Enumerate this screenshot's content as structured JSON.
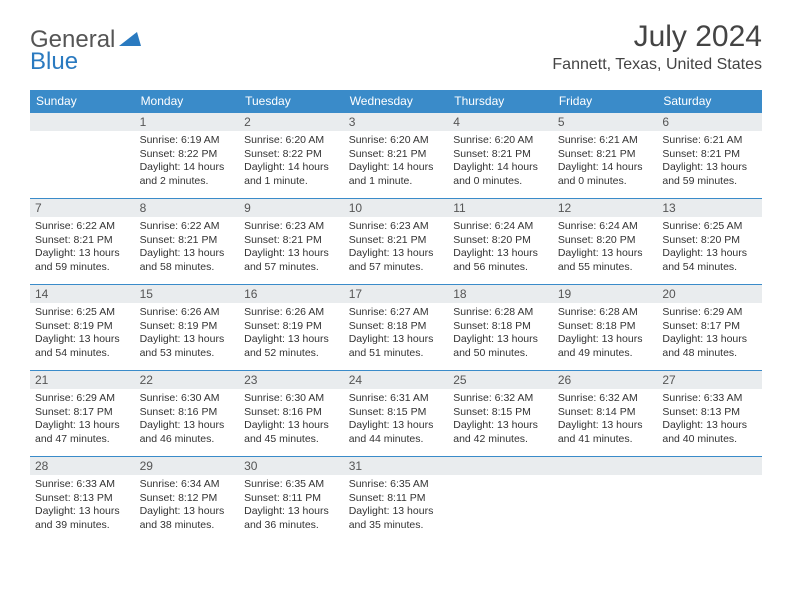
{
  "brand": {
    "part1": "General",
    "part2": "Blue"
  },
  "title": "July 2024",
  "location": "Fannett, Texas, United States",
  "colors": {
    "header_bg": "#3a8bc9",
    "header_text": "#ffffff",
    "daynum_bg": "#e9ecee",
    "border": "#3a8bc9",
    "brand_blue": "#2a7ac0",
    "text": "#333333",
    "page_bg": "#ffffff"
  },
  "day_headers": [
    "Sunday",
    "Monday",
    "Tuesday",
    "Wednesday",
    "Thursday",
    "Friday",
    "Saturday"
  ],
  "weeks": [
    [
      {
        "n": "",
        "sunrise": "",
        "sunset": "",
        "daylight": ""
      },
      {
        "n": "1",
        "sunrise": "Sunrise: 6:19 AM",
        "sunset": "Sunset: 8:22 PM",
        "daylight": "Daylight: 14 hours and 2 minutes."
      },
      {
        "n": "2",
        "sunrise": "Sunrise: 6:20 AM",
        "sunset": "Sunset: 8:22 PM",
        "daylight": "Daylight: 14 hours and 1 minute."
      },
      {
        "n": "3",
        "sunrise": "Sunrise: 6:20 AM",
        "sunset": "Sunset: 8:21 PM",
        "daylight": "Daylight: 14 hours and 1 minute."
      },
      {
        "n": "4",
        "sunrise": "Sunrise: 6:20 AM",
        "sunset": "Sunset: 8:21 PM",
        "daylight": "Daylight: 14 hours and 0 minutes."
      },
      {
        "n": "5",
        "sunrise": "Sunrise: 6:21 AM",
        "sunset": "Sunset: 8:21 PM",
        "daylight": "Daylight: 14 hours and 0 minutes."
      },
      {
        "n": "6",
        "sunrise": "Sunrise: 6:21 AM",
        "sunset": "Sunset: 8:21 PM",
        "daylight": "Daylight: 13 hours and 59 minutes."
      }
    ],
    [
      {
        "n": "7",
        "sunrise": "Sunrise: 6:22 AM",
        "sunset": "Sunset: 8:21 PM",
        "daylight": "Daylight: 13 hours and 59 minutes."
      },
      {
        "n": "8",
        "sunrise": "Sunrise: 6:22 AM",
        "sunset": "Sunset: 8:21 PM",
        "daylight": "Daylight: 13 hours and 58 minutes."
      },
      {
        "n": "9",
        "sunrise": "Sunrise: 6:23 AM",
        "sunset": "Sunset: 8:21 PM",
        "daylight": "Daylight: 13 hours and 57 minutes."
      },
      {
        "n": "10",
        "sunrise": "Sunrise: 6:23 AM",
        "sunset": "Sunset: 8:21 PM",
        "daylight": "Daylight: 13 hours and 57 minutes."
      },
      {
        "n": "11",
        "sunrise": "Sunrise: 6:24 AM",
        "sunset": "Sunset: 8:20 PM",
        "daylight": "Daylight: 13 hours and 56 minutes."
      },
      {
        "n": "12",
        "sunrise": "Sunrise: 6:24 AM",
        "sunset": "Sunset: 8:20 PM",
        "daylight": "Daylight: 13 hours and 55 minutes."
      },
      {
        "n": "13",
        "sunrise": "Sunrise: 6:25 AM",
        "sunset": "Sunset: 8:20 PM",
        "daylight": "Daylight: 13 hours and 54 minutes."
      }
    ],
    [
      {
        "n": "14",
        "sunrise": "Sunrise: 6:25 AM",
        "sunset": "Sunset: 8:19 PM",
        "daylight": "Daylight: 13 hours and 54 minutes."
      },
      {
        "n": "15",
        "sunrise": "Sunrise: 6:26 AM",
        "sunset": "Sunset: 8:19 PM",
        "daylight": "Daylight: 13 hours and 53 minutes."
      },
      {
        "n": "16",
        "sunrise": "Sunrise: 6:26 AM",
        "sunset": "Sunset: 8:19 PM",
        "daylight": "Daylight: 13 hours and 52 minutes."
      },
      {
        "n": "17",
        "sunrise": "Sunrise: 6:27 AM",
        "sunset": "Sunset: 8:18 PM",
        "daylight": "Daylight: 13 hours and 51 minutes."
      },
      {
        "n": "18",
        "sunrise": "Sunrise: 6:28 AM",
        "sunset": "Sunset: 8:18 PM",
        "daylight": "Daylight: 13 hours and 50 minutes."
      },
      {
        "n": "19",
        "sunrise": "Sunrise: 6:28 AM",
        "sunset": "Sunset: 8:18 PM",
        "daylight": "Daylight: 13 hours and 49 minutes."
      },
      {
        "n": "20",
        "sunrise": "Sunrise: 6:29 AM",
        "sunset": "Sunset: 8:17 PM",
        "daylight": "Daylight: 13 hours and 48 minutes."
      }
    ],
    [
      {
        "n": "21",
        "sunrise": "Sunrise: 6:29 AM",
        "sunset": "Sunset: 8:17 PM",
        "daylight": "Daylight: 13 hours and 47 minutes."
      },
      {
        "n": "22",
        "sunrise": "Sunrise: 6:30 AM",
        "sunset": "Sunset: 8:16 PM",
        "daylight": "Daylight: 13 hours and 46 minutes."
      },
      {
        "n": "23",
        "sunrise": "Sunrise: 6:30 AM",
        "sunset": "Sunset: 8:16 PM",
        "daylight": "Daylight: 13 hours and 45 minutes."
      },
      {
        "n": "24",
        "sunrise": "Sunrise: 6:31 AM",
        "sunset": "Sunset: 8:15 PM",
        "daylight": "Daylight: 13 hours and 44 minutes."
      },
      {
        "n": "25",
        "sunrise": "Sunrise: 6:32 AM",
        "sunset": "Sunset: 8:15 PM",
        "daylight": "Daylight: 13 hours and 42 minutes."
      },
      {
        "n": "26",
        "sunrise": "Sunrise: 6:32 AM",
        "sunset": "Sunset: 8:14 PM",
        "daylight": "Daylight: 13 hours and 41 minutes."
      },
      {
        "n": "27",
        "sunrise": "Sunrise: 6:33 AM",
        "sunset": "Sunset: 8:13 PM",
        "daylight": "Daylight: 13 hours and 40 minutes."
      }
    ],
    [
      {
        "n": "28",
        "sunrise": "Sunrise: 6:33 AM",
        "sunset": "Sunset: 8:13 PM",
        "daylight": "Daylight: 13 hours and 39 minutes."
      },
      {
        "n": "29",
        "sunrise": "Sunrise: 6:34 AM",
        "sunset": "Sunset: 8:12 PM",
        "daylight": "Daylight: 13 hours and 38 minutes."
      },
      {
        "n": "30",
        "sunrise": "Sunrise: 6:35 AM",
        "sunset": "Sunset: 8:11 PM",
        "daylight": "Daylight: 13 hours and 36 minutes."
      },
      {
        "n": "31",
        "sunrise": "Sunrise: 6:35 AM",
        "sunset": "Sunset: 8:11 PM",
        "daylight": "Daylight: 13 hours and 35 minutes."
      },
      {
        "n": "",
        "sunrise": "",
        "sunset": "",
        "daylight": ""
      },
      {
        "n": "",
        "sunrise": "",
        "sunset": "",
        "daylight": ""
      },
      {
        "n": "",
        "sunrise": "",
        "sunset": "",
        "daylight": ""
      }
    ]
  ]
}
